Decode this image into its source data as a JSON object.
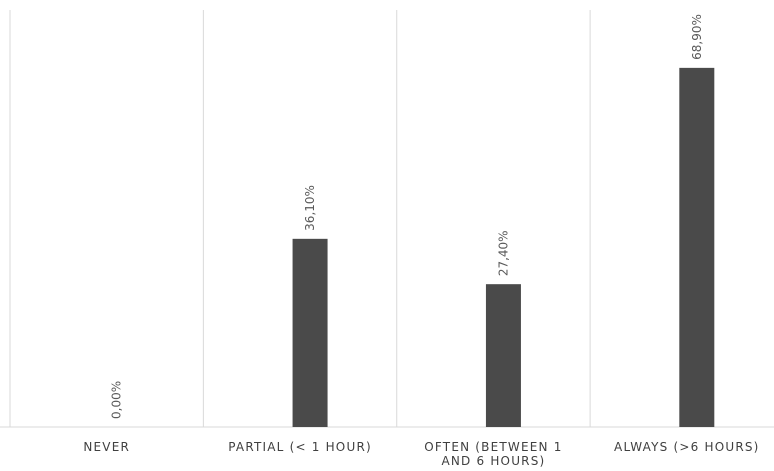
{
  "chart_data": {
    "type": "bar",
    "categories": [
      [
        "NEVER"
      ],
      [
        "PARTIAL (< 1 HOUR)"
      ],
      [
        "OFTEN (BETWEEN 1",
        "AND 6 HOURS)"
      ],
      [
        "ALWAYS (>6 HOURS)"
      ]
    ],
    "values": [
      0.0,
      36.1,
      27.4,
      68.9
    ],
    "data_labels": [
      "0,00%",
      "36,10%",
      "27,40%",
      "68,90%"
    ],
    "title": "",
    "xlabel": "",
    "ylabel": "",
    "ylim": [
      0,
      80
    ],
    "grid": "vertical category separators",
    "legend": "none",
    "colors": {
      "bar": "#4a4a4a",
      "grid": "#d9d9d9",
      "label": "#595959",
      "tick": "#404040"
    }
  }
}
